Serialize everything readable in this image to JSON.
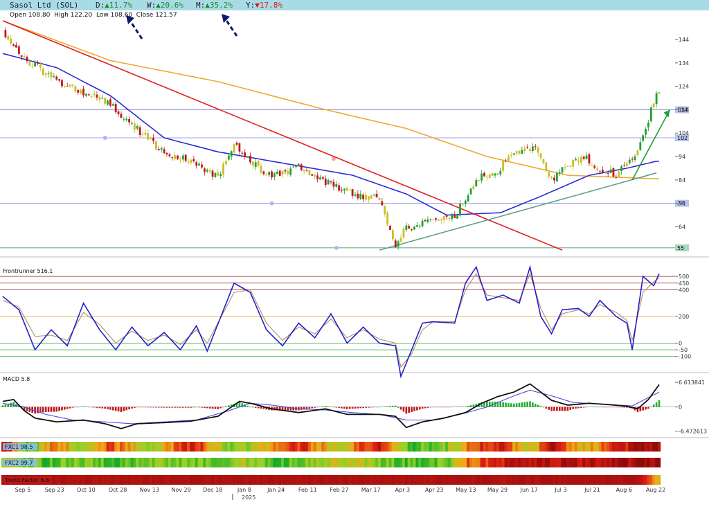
{
  "header": {
    "name": "Sasol Ltd (SOL)",
    "perf": [
      {
        "label": "D:",
        "arrow": "▲",
        "value": "11.7%",
        "dir": "up"
      },
      {
        "label": "W:",
        "arrow": "▲",
        "value": "20.6%",
        "dir": "up"
      },
      {
        "label": "M:",
        "arrow": "▲",
        "value": "35.2%",
        "dir": "up"
      },
      {
        "label": "Y:",
        "arrow": "▼",
        "value": "17.8%",
        "dir": "down"
      }
    ],
    "ohlc": {
      "open_label": "Open",
      "open": "108.80",
      "high_label": "High",
      "high": "122.20",
      "low_label": "Low",
      "low": "108.60",
      "close_label": "Close",
      "close": "121.57"
    }
  },
  "chart_data": [
    {
      "type": "candlestick",
      "name": "Price",
      "ylim": [
        52,
        152
      ],
      "y_ticks": [
        64,
        74,
        84,
        94,
        104,
        114,
        124,
        134,
        144
      ],
      "x_labels": [
        "Sep 5",
        "Sep 23",
        "Oct 10",
        "Oct 28",
        "Nov 13",
        "Nov 29",
        "Dec 18",
        "Jan 8",
        "Jan 24",
        "Feb 11",
        "Feb 27",
        "Mar 17",
        "Apr 3",
        "Apr 23",
        "May 13",
        "May 29",
        "Jun 17",
        "Jul 3",
        "Jul 21",
        "Aug 6",
        "Aug 22"
      ],
      "year_label": "2025",
      "close_anchors": [
        [
          0,
          148
        ],
        [
          8,
          136
        ],
        [
          18,
          128
        ],
        [
          28,
          122
        ],
        [
          38,
          118
        ],
        [
          48,
          108
        ],
        [
          58,
          97
        ],
        [
          70,
          92
        ],
        [
          80,
          85
        ],
        [
          86,
          100
        ],
        [
          94,
          90
        ],
        [
          100,
          85
        ],
        [
          110,
          90
        ],
        [
          122,
          82
        ],
        [
          130,
          78
        ],
        [
          140,
          76
        ],
        [
          146,
          56
        ],
        [
          150,
          64
        ],
        [
          160,
          66
        ],
        [
          168,
          68
        ],
        [
          176,
          85
        ],
        [
          184,
          88
        ],
        [
          190,
          96
        ],
        [
          198,
          98
        ],
        [
          204,
          84
        ],
        [
          210,
          90
        ],
        [
          216,
          94
        ],
        [
          220,
          90
        ],
        [
          228,
          86
        ],
        [
          236,
          96
        ],
        [
          240,
          110
        ],
        [
          243,
          121.57
        ]
      ],
      "moving_averages": [
        {
          "color": "#f0a830",
          "points": [
            [
              0,
              152
            ],
            [
              40,
              135
            ],
            [
              80,
              126
            ],
            [
              120,
              114
            ],
            [
              150,
              106
            ],
            [
              180,
              94
            ],
            [
              210,
              86
            ],
            [
              243,
              84.5
            ]
          ]
        },
        {
          "color": "#2a2ad8",
          "points": [
            [
              0,
              138
            ],
            [
              20,
              132
            ],
            [
              40,
              120
            ],
            [
              60,
              102
            ],
            [
              80,
              96
            ],
            [
              100,
              92
            ],
            [
              130,
              86
            ],
            [
              150,
              78
            ],
            [
              165,
              69
            ],
            [
              185,
              70
            ],
            [
              200,
              77
            ],
            [
              218,
              86
            ],
            [
              232,
              89
            ],
            [
              243,
              92
            ]
          ]
        }
      ],
      "trendlines": [
        {
          "color": "#e02020",
          "points": [
            [
              0,
              152
            ],
            [
              208,
              54
            ]
          ]
        },
        {
          "color": "#5f9e8a",
          "points": [
            [
              140,
              54
            ],
            [
              243,
              87
            ]
          ]
        },
        {
          "color": "#1e9e3a",
          "points": [
            [
              234,
              84
            ],
            [
              248,
              114
            ]
          ]
        }
      ],
      "levels": [
        {
          "value": 114,
          "label": "114"
        },
        {
          "value": 102,
          "label": "102"
        },
        {
          "value": 74,
          "label": "74"
        },
        {
          "value": 55,
          "label": "55"
        }
      ]
    },
    {
      "type": "line",
      "name": "Frontrunner",
      "title": "Frontrunner 516.1",
      "ylim": [
        -200,
        620
      ],
      "y_ticks": [
        500,
        450,
        400,
        200,
        0,
        -50,
        -100
      ],
      "levels": [
        500,
        450,
        400,
        200,
        0,
        -50,
        -100
      ],
      "series": [
        {
          "color": "#2222c8",
          "points": [
            [
              0,
              350
            ],
            [
              6,
              250
            ],
            [
              12,
              -50
            ],
            [
              18,
              100
            ],
            [
              24,
              -20
            ],
            [
              30,
              300
            ],
            [
              36,
              100
            ],
            [
              42,
              -50
            ],
            [
              48,
              120
            ],
            [
              54,
              -20
            ],
            [
              60,
              80
            ],
            [
              66,
              -50
            ],
            [
              72,
              130
            ],
            [
              76,
              -60
            ],
            [
              86,
              450
            ],
            [
              92,
              380
            ],
            [
              98,
              100
            ],
            [
              104,
              -20
            ],
            [
              110,
              150
            ],
            [
              116,
              40
            ],
            [
              122,
              220
            ],
            [
              128,
              0
            ],
            [
              134,
              120
            ],
            [
              140,
              0
            ],
            [
              146,
              -20
            ],
            [
              148,
              -250
            ],
            [
              152,
              -50
            ],
            [
              156,
              150
            ],
            [
              160,
              160
            ],
            [
              168,
              150
            ],
            [
              172,
              450
            ],
            [
              176,
              570
            ],
            [
              180,
              320
            ],
            [
              186,
              360
            ],
            [
              192,
              300
            ],
            [
              196,
              570
            ],
            [
              200,
              200
            ],
            [
              204,
              70
            ],
            [
              208,
              250
            ],
            [
              214,
              260
            ],
            [
              218,
              200
            ],
            [
              222,
              320
            ],
            [
              228,
              200
            ],
            [
              232,
              150
            ],
            [
              234,
              -50
            ],
            [
              238,
              500
            ],
            [
              242,
              430
            ],
            [
              244,
              520
            ]
          ]
        },
        {
          "color": "#b58a6a",
          "points": [
            [
              0,
              320
            ],
            [
              6,
              270
            ],
            [
              12,
              50
            ],
            [
              18,
              60
            ],
            [
              24,
              20
            ],
            [
              30,
              230
            ],
            [
              36,
              140
            ],
            [
              42,
              0
            ],
            [
              48,
              90
            ],
            [
              54,
              20
            ],
            [
              60,
              60
            ],
            [
              66,
              -10
            ],
            [
              72,
              100
            ],
            [
              76,
              0
            ],
            [
              86,
              380
            ],
            [
              92,
              400
            ],
            [
              98,
              150
            ],
            [
              104,
              20
            ],
            [
              110,
              120
            ],
            [
              116,
              70
            ],
            [
              122,
              180
            ],
            [
              128,
              40
            ],
            [
              134,
              100
            ],
            [
              140,
              30
            ],
            [
              146,
              0
            ],
            [
              148,
              -180
            ],
            [
              152,
              -80
            ],
            [
              156,
              100
            ],
            [
              160,
              160
            ],
            [
              168,
              160
            ],
            [
              172,
              400
            ],
            [
              176,
              520
            ],
            [
              180,
              360
            ],
            [
              186,
              340
            ],
            [
              192,
              320
            ],
            [
              196,
              520
            ],
            [
              200,
              260
            ],
            [
              204,
              100
            ],
            [
              208,
              220
            ],
            [
              214,
              250
            ],
            [
              218,
              220
            ],
            [
              222,
              290
            ],
            [
              228,
              230
            ],
            [
              232,
              170
            ],
            [
              234,
              20
            ],
            [
              238,
              380
            ],
            [
              242,
              460
            ],
            [
              244,
              490
            ]
          ]
        }
      ]
    },
    {
      "type": "bar",
      "name": "MACD",
      "title": "MACD 5.8",
      "ylim": [
        -7.5,
        8.5
      ],
      "y_ticks": [
        6.613841,
        0,
        -6.472613
      ],
      "y_tick_labels": [
        "6.613841",
        "0",
        "-6.472613"
      ],
      "series": [
        {
          "name": "macd",
          "color": "#111111",
          "points": [
            [
              0,
              1.5
            ],
            [
              4,
              2
            ],
            [
              8,
              -1
            ],
            [
              12,
              -3
            ],
            [
              20,
              -4
            ],
            [
              30,
              -3.5
            ],
            [
              38,
              -4.5
            ],
            [
              44,
              -5.8
            ],
            [
              50,
              -4.5
            ],
            [
              60,
              -4.2
            ],
            [
              70,
              -3.8
            ],
            [
              80,
              -2.5
            ],
            [
              88,
              1.5
            ],
            [
              92,
              1
            ],
            [
              100,
              -0.5
            ],
            [
              110,
              -1.5
            ],
            [
              120,
              -0.5
            ],
            [
              128,
              -2
            ],
            [
              140,
              -2
            ],
            [
              146,
              -2.5
            ],
            [
              150,
              -5.5
            ],
            [
              156,
              -4
            ],
            [
              164,
              -3
            ],
            [
              172,
              -1.5
            ],
            [
              178,
              1
            ],
            [
              184,
              2.8
            ],
            [
              190,
              4
            ],
            [
              196,
              6.2
            ],
            [
              200,
              4
            ],
            [
              204,
              1.8
            ],
            [
              210,
              0.5
            ],
            [
              218,
              1
            ],
            [
              226,
              0.6
            ],
            [
              232,
              0.2
            ],
            [
              236,
              -0.5
            ],
            [
              240,
              2
            ],
            [
              244,
              6
            ]
          ]
        },
        {
          "name": "signal",
          "color": "#4a4ae0",
          "points": [
            [
              0,
              1
            ],
            [
              8,
              0
            ],
            [
              16,
              -2
            ],
            [
              26,
              -3.5
            ],
            [
              38,
              -4
            ],
            [
              48,
              -4.5
            ],
            [
              60,
              -4
            ],
            [
              72,
              -3.5
            ],
            [
              84,
              -1
            ],
            [
              92,
              1
            ],
            [
              100,
              0.5
            ],
            [
              110,
              -0.5
            ],
            [
              120,
              -0.8
            ],
            [
              130,
              -1.5
            ],
            [
              140,
              -2
            ],
            [
              150,
              -3.5
            ],
            [
              160,
              -3.5
            ],
            [
              170,
              -2
            ],
            [
              180,
              0
            ],
            [
              190,
              3
            ],
            [
              196,
              4.5
            ],
            [
              204,
              3
            ],
            [
              212,
              1.2
            ],
            [
              222,
              0.8
            ],
            [
              234,
              0.3
            ],
            [
              244,
              4
            ]
          ]
        }
      ]
    },
    {
      "type": "heatmap",
      "name": "FXC1",
      "title": "FXC1 98.5",
      "stops": [
        [
          0,
          -0.8
        ],
        [
          10,
          0.8
        ],
        [
          20,
          -0.3
        ],
        [
          30,
          0.6
        ],
        [
          40,
          -0.4
        ],
        [
          55,
          0.5
        ],
        [
          70,
          -0.6
        ],
        [
          85,
          0.7
        ],
        [
          95,
          0.2
        ],
        [
          110,
          -0.5
        ],
        [
          125,
          0.3
        ],
        [
          140,
          -0.7
        ],
        [
          152,
          0.8
        ],
        [
          165,
          0.6
        ],
        [
          175,
          -0.4
        ],
        [
          185,
          -0.6
        ],
        [
          195,
          0.4
        ],
        [
          205,
          -0.8
        ],
        [
          215,
          0.2
        ],
        [
          225,
          -0.3
        ],
        [
          235,
          -0.8
        ],
        [
          244,
          -1
        ]
      ]
    },
    {
      "type": "heatmap",
      "name": "FXC2",
      "title": "FXC2 99.7",
      "stops": [
        [
          0,
          0.3
        ],
        [
          15,
          0.8
        ],
        [
          30,
          0.6
        ],
        [
          45,
          0.8
        ],
        [
          60,
          0.5
        ],
        [
          75,
          0.7
        ],
        [
          90,
          0.4
        ],
        [
          100,
          0.8
        ],
        [
          115,
          0.6
        ],
        [
          130,
          0.2
        ],
        [
          140,
          0.6
        ],
        [
          150,
          0.8
        ],
        [
          165,
          0.7
        ],
        [
          172,
          -0.2
        ],
        [
          185,
          -0.6
        ],
        [
          200,
          -0.8
        ],
        [
          215,
          -0.7
        ],
        [
          230,
          -0.8
        ],
        [
          244,
          -1
        ]
      ]
    },
    {
      "type": "heatmap",
      "name": "Trend Factor",
      "title": "Trend Factor 6.6",
      "stops": [
        [
          0,
          -0.8
        ],
        [
          236,
          -0.8
        ],
        [
          240,
          -0.4
        ],
        [
          244,
          0.2
        ]
      ]
    }
  ],
  "annotations": {
    "color": "#0a1a6a"
  }
}
